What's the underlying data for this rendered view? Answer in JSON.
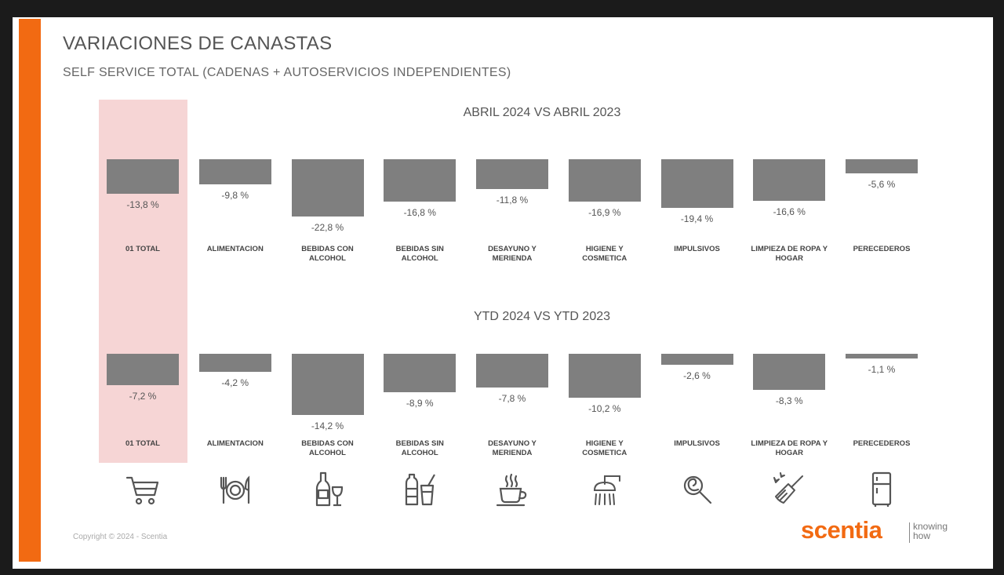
{
  "header": {
    "title": "VARIACIONES DE CANASTAS",
    "subtitle": "SELF SERVICE TOTAL (CADENAS + AUTOSERVICIOS INDEPENDIENTES)"
  },
  "chart_data": [
    {
      "type": "bar",
      "title": "ABRIL 2024 VS ABRIL 2023",
      "categories": [
        "01 TOTAL",
        "ALIMENTACION",
        "BEBIDAS CON ALCOHOL",
        "BEBIDAS SIN ALCOHOL",
        "DESAYUNO Y MERIENDA",
        "HIGIENE Y COSMETICA",
        "IMPULSIVOS",
        "LIMPIEZA DE ROPA Y HOGAR",
        "PERECEDEROS"
      ],
      "category_lines": [
        [
          "01 TOTAL"
        ],
        [
          "ALIMENTACION"
        ],
        [
          "BEBIDAS CON",
          "ALCOHOL"
        ],
        [
          "BEBIDAS SIN",
          "ALCOHOL"
        ],
        [
          "DESAYUNO Y",
          "MERIENDA"
        ],
        [
          "HIGIENE Y",
          "COSMETICA"
        ],
        [
          "IMPULSIVOS"
        ],
        [
          "LIMPIEZA DE ROPA Y",
          "HOGAR"
        ],
        [
          "PERECEDEROS"
        ]
      ],
      "values": [
        -13.8,
        -9.8,
        -22.8,
        -16.8,
        -11.8,
        -16.9,
        -19.4,
        -16.6,
        -5.6
      ],
      "labels": [
        "-13,8 %",
        "-9,8 %",
        "-22,8 %",
        "-16,8 %",
        "-11,8 %",
        "-16,9 %",
        "-19,4 %",
        "-16,6 %",
        "-5,6 %"
      ],
      "ylim": [
        -25,
        0
      ]
    },
    {
      "type": "bar",
      "title": "YTD 2024 VS YTD 2023",
      "categories": [
        "01 TOTAL",
        "ALIMENTACION",
        "BEBIDAS CON ALCOHOL",
        "BEBIDAS SIN ALCOHOL",
        "DESAYUNO Y MERIENDA",
        "HIGIENE Y COSMETICA",
        "IMPULSIVOS",
        "LIMPIEZA DE ROPA Y HOGAR",
        "PERECEDEROS"
      ],
      "category_lines": [
        [
          "01 TOTAL"
        ],
        [
          "ALIMENTACION"
        ],
        [
          "BEBIDAS CON",
          "ALCOHOL"
        ],
        [
          "BEBIDAS SIN",
          "ALCOHOL"
        ],
        [
          "DESAYUNO Y",
          "MERIENDA"
        ],
        [
          "HIGIENE Y",
          "COSMETICA"
        ],
        [
          "IMPULSIVOS"
        ],
        [
          "LIMPIEZA DE ROPA Y",
          "HOGAR"
        ],
        [
          "PERECEDEROS"
        ]
      ],
      "values": [
        -7.2,
        -4.2,
        -14.2,
        -8.9,
        -7.8,
        -10.2,
        -2.6,
        -8.3,
        -1.1
      ],
      "labels": [
        "-7,2 %",
        "-4,2 %",
        "-14,2 %",
        "-8,9 %",
        "-7,8 %",
        "-10,2 %",
        "-2,6 %",
        "-8,3 %",
        "-1,1 %"
      ],
      "ylim": [
        -15,
        0
      ]
    }
  ],
  "icons": [
    "shopping-cart-icon",
    "cutlery-plate-icon",
    "wine-bottle-glass-icon",
    "water-bottle-cup-icon",
    "coffee-cup-icon",
    "shower-icon",
    "lollipop-icon",
    "cleaning-brush-icon",
    "fridge-icon"
  ],
  "colors": {
    "accent": "#f26a12",
    "bar": "#7f7f7f",
    "highlight": "#f6d5d5"
  },
  "footer": {
    "copyright": "Copyright © 2024 - Scentia",
    "logo_word": "scentia",
    "logo_tag_1": "knowing",
    "logo_tag_2": "how"
  }
}
